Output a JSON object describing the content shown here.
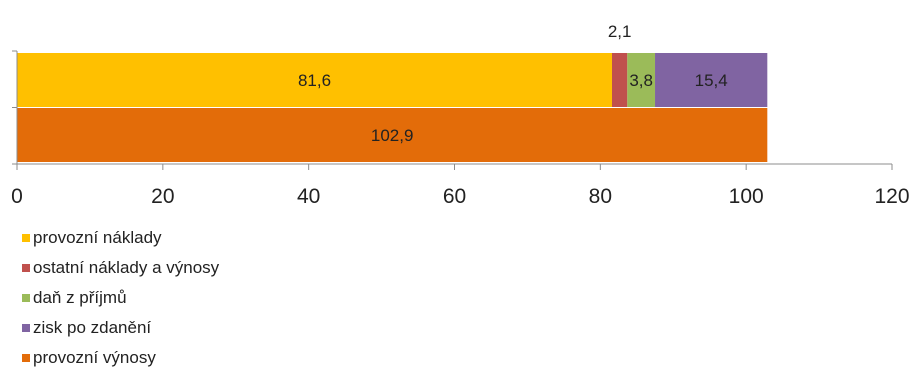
{
  "chart_data": {
    "type": "bar",
    "orientation": "horizontal",
    "stacked": true,
    "categories": [
      "",
      ""
    ],
    "xlim": [
      0,
      120
    ],
    "x_ticks": [
      "0",
      "20",
      "40",
      "60",
      "80",
      "100",
      "120"
    ],
    "grid": false,
    "legend_position": "bottom-left",
    "series": [
      {
        "name": "provozní náklady",
        "color": "#FFC000",
        "values": [
          81.6,
          null
        ],
        "labels": [
          "81,6",
          ""
        ]
      },
      {
        "name": "ostatní náklady a výnosy",
        "color": "#C0504D",
        "values": [
          2.1,
          null
        ],
        "labels": [
          "2,1",
          ""
        ]
      },
      {
        "name": "daň z příjmů",
        "color": "#9BBB59",
        "values": [
          3.8,
          null
        ],
        "labels": [
          "3,8",
          ""
        ]
      },
      {
        "name": "zisk po zdanění",
        "color": "#8064A2",
        "values": [
          15.4,
          null
        ],
        "labels": [
          "15,4",
          ""
        ]
      },
      {
        "name": "provozní výnosy",
        "color": "#E36C09",
        "values": [
          null,
          102.9
        ],
        "labels": [
          "",
          "102,9"
        ]
      }
    ]
  }
}
